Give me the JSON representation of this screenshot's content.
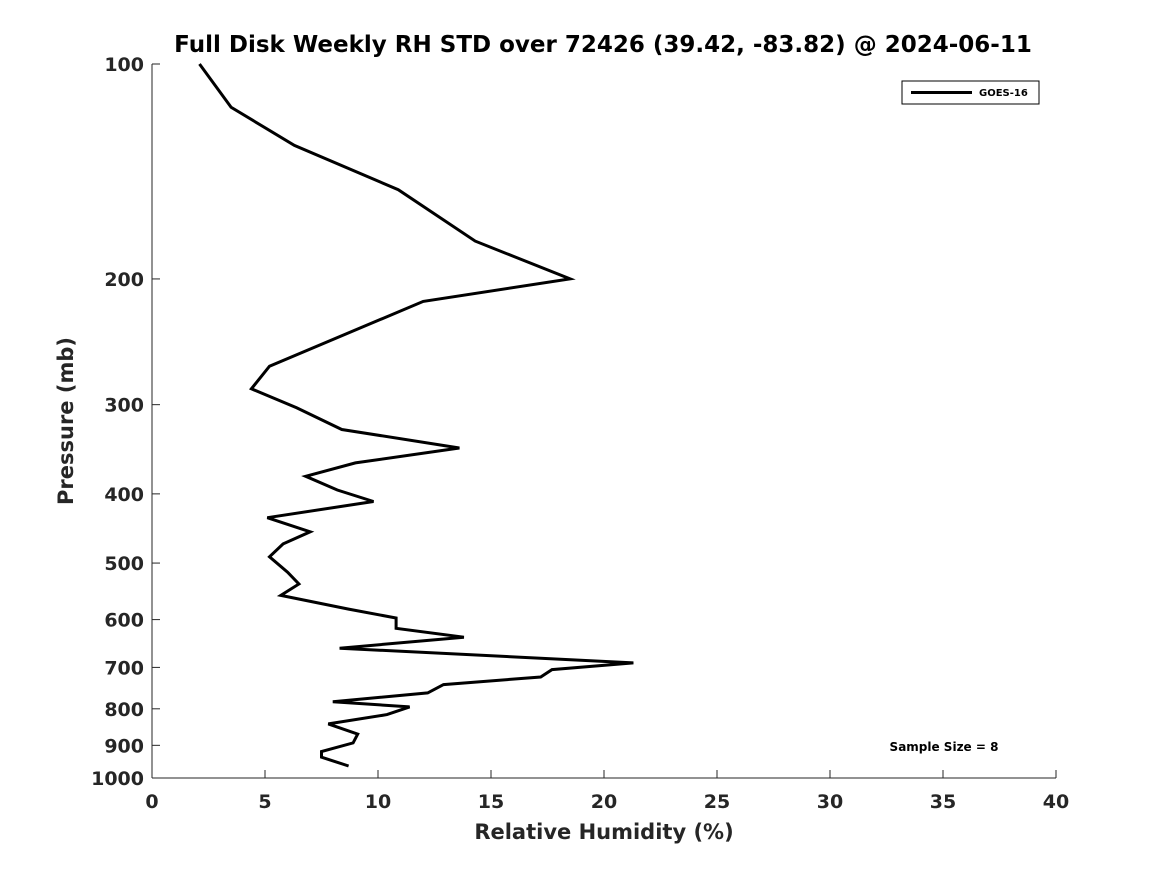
{
  "chart_data": {
    "type": "line",
    "title": "Full Disk Weekly RH STD over 72426 (39.42, -83.82) @ 2024-06-11",
    "xlabel": "Relative Humidity (%)",
    "ylabel": "Pressure (mb)",
    "xlim": [
      0,
      40
    ],
    "ylim": [
      100,
      1000
    ],
    "yscale": "log",
    "y_reversed": true,
    "grid": false,
    "legend_position": "top-right",
    "x_ticks": [
      "0",
      "5",
      "10",
      "15",
      "20",
      "25",
      "30",
      "35",
      "40"
    ],
    "y_ticks": [
      "100",
      "200",
      "300",
      "400",
      "500",
      "600",
      "700",
      "800",
      "900",
      "1000"
    ],
    "annotation": "Sample Size = 8",
    "series": [
      {
        "name": "GOES-16",
        "color": "#000000",
        "x": [
          2.1,
          3.5,
          6.3,
          10.9,
          14.3,
          18.5,
          12.0,
          5.2,
          4.4,
          6.4,
          8.4,
          13.6,
          9.0,
          6.8,
          8.2,
          9.8,
          5.1,
          7.0,
          5.8,
          5.2,
          6.0,
          6.5,
          5.7,
          8.7,
          10.8,
          10.8,
          13.8,
          8.3,
          21.3,
          17.7,
          17.2,
          12.9,
          12.2,
          8.0,
          11.4,
          10.4,
          7.8,
          9.1,
          8.9,
          7.5,
          7.5,
          8.7
        ],
        "y": [
          100,
          115,
          130,
          150,
          177,
          200,
          215,
          265,
          285,
          303,
          325,
          345,
          362,
          378,
          395,
          410,
          432,
          452,
          470,
          490,
          515,
          535,
          555,
          580,
          597,
          617,
          635,
          658,
          690,
          705,
          722,
          740,
          760,
          782,
          795,
          815,
          840,
          868,
          893,
          918,
          935,
          962
        ]
      }
    ]
  }
}
